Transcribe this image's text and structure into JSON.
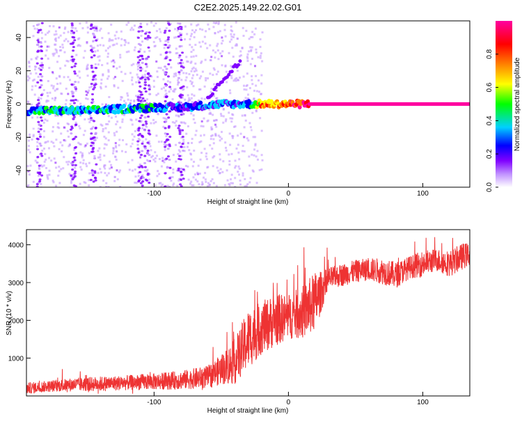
{
  "title": "C2E2.2025.149.22.02.G01",
  "chart_data": [
    {
      "type": "heatmap",
      "xlabel": "Height of straight line (km)",
      "ylabel": "Frequency (Hz)",
      "xlim": [
        -195,
        135
      ],
      "ylim": [
        -50,
        50
      ],
      "x_ticks": [
        -100,
        0,
        100
      ],
      "y_ticks": [
        -40,
        -20,
        0,
        20,
        40
      ],
      "colorbar": {
        "label": "Normalized spectral amplitude",
        "range": [
          0,
          1
        ],
        "ticks": [
          "0.0",
          "0.2",
          "0.4",
          "0.6",
          "0.8"
        ],
        "colormap": [
          "#ffffff",
          "#c090ff",
          "#8000ff",
          "#0000ff",
          "#00d0ff",
          "#00ff00",
          "#ffff00",
          "#ff8000",
          "#ff0000",
          "#ff00a0"
        ]
      },
      "grid": false,
      "description_points": {
        "ridge_x": [
          -195,
          -150,
          -100,
          -80,
          -50,
          -30,
          -20,
          0,
          20,
          50,
          100,
          135
        ],
        "ridge_freq": [
          -4,
          -4,
          -2,
          -2,
          0,
          0,
          0,
          0,
          0,
          0,
          0,
          0
        ],
        "ridge_amp": [
          0.4,
          0.45,
          0.4,
          0.3,
          0.35,
          0.35,
          0.75,
          0.8,
          1.0,
          1.0,
          1.0,
          1.0
        ]
      }
    },
    {
      "type": "line",
      "xlabel": "Height of straight line (km)",
      "ylabel": "SNR (10 * v/v)",
      "xlim": [
        -195,
        135
      ],
      "ylim": [
        0,
        4400
      ],
      "x_ticks": [
        -100,
        0,
        100
      ],
      "y_ticks": [
        1000,
        2000,
        3000,
        4000
      ],
      "grid": false,
      "color": "#ee3333",
      "x": [
        -195,
        -180,
        -160,
        -140,
        -120,
        -100,
        -80,
        -60,
        -50,
        -40,
        -30,
        -20,
        -10,
        0,
        10,
        20,
        25,
        30,
        40,
        50,
        60,
        70,
        80,
        90,
        100,
        110,
        120,
        130,
        135
      ],
      "y": [
        200,
        250,
        300,
        320,
        350,
        380,
        420,
        500,
        700,
        900,
        1500,
        1800,
        2000,
        2100,
        2200,
        2500,
        2800,
        3100,
        3200,
        3300,
        3350,
        3300,
        3200,
        3400,
        3500,
        3600,
        3500,
        3700,
        3750
      ],
      "noise_amplitude": [
        150,
        150,
        180,
        200,
        200,
        220,
        250,
        300,
        400,
        600,
        800,
        700,
        700,
        600,
        700,
        800,
        500,
        300,
        300,
        300,
        300,
        350,
        350,
        300,
        350,
        300,
        350,
        350,
        300
      ]
    }
  ]
}
